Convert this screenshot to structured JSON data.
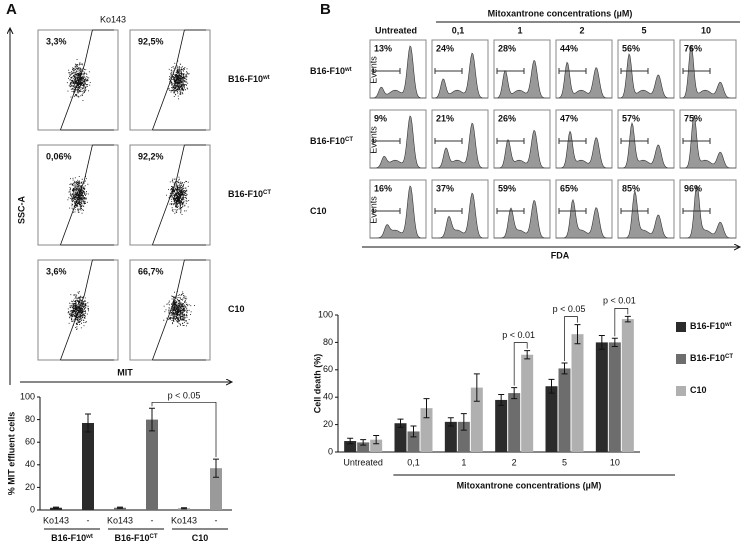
{
  "panel_a": {
    "label": "A",
    "inhibitor": "Ko143",
    "y_axis": "SSC-A",
    "x_axis": "MIT",
    "rows": [
      {
        "name": {
          "base": "B16-F10",
          "sup": "wt"
        },
        "percents": [
          "3,3%",
          "92,5%"
        ]
      },
      {
        "name": {
          "base": "B16-F10",
          "sup": "CT"
        },
        "percents": [
          "0,06%",
          "92,2%"
        ]
      },
      {
        "name": {
          "base": "C10",
          "sup": ""
        },
        "percents": [
          "3,6%",
          "66,7%"
        ]
      }
    ]
  },
  "panel_b": {
    "label": "B",
    "header": "Mitoxantrone concentrations (µM)",
    "columns": [
      "Untreated",
      "0,1",
      "1",
      "2",
      "5",
      "10"
    ],
    "x_axis": "FDA",
    "y_axis": "Events",
    "rows": [
      {
        "name": {
          "base": "B16-F10",
          "sup": "wt"
        },
        "percents": [
          "13%",
          "24%",
          "28%",
          "44%",
          "56%",
          "76%"
        ]
      },
      {
        "name": {
          "base": "B16-F10",
          "sup": "CT"
        },
        "percents": [
          "9%",
          "21%",
          "26%",
          "47%",
          "57%",
          "75%"
        ]
      },
      {
        "name": {
          "base": "C10",
          "sup": ""
        },
        "percents": [
          "16%",
          "37%",
          "59%",
          "65%",
          "85%",
          "96%"
        ]
      }
    ]
  },
  "chart_data": [
    {
      "type": "bar",
      "y_label": "% MIT effluent cells",
      "categories": [
        "Ko143",
        "-",
        "Ko143",
        "-",
        "Ko143",
        "-"
      ],
      "groups": [
        {
          "base": "B16-F10",
          "sup": "wt"
        },
        {
          "base": "B16-F10",
          "sup": "CT"
        },
        {
          "base": "C10",
          "sup": ""
        }
      ],
      "values": [
        2,
        77,
        2,
        80,
        1.5,
        37
      ],
      "errors": [
        0.5,
        8,
        0.5,
        10,
        0.5,
        8
      ],
      "colors": [
        "#2b2b2b",
        "#2b2b2b",
        "#6d6d6d",
        "#6d6d6d",
        "#9a9a9a",
        "#9a9a9a"
      ],
      "ylim": [
        0,
        100
      ],
      "yticks": [
        0,
        20,
        40,
        60,
        80,
        100
      ],
      "annotation": "p < 0.05"
    },
    {
      "type": "grouped_bar",
      "y_label": "Cell death (%)",
      "x_label": "Mitoxantrone concentrations (µM)",
      "categories": [
        "Untreated",
        "0,1",
        "1",
        "2",
        "5",
        "10"
      ],
      "series": [
        {
          "name": "B16-F10",
          "sup": "wt",
          "color": "#2b2b2b",
          "values": [
            8,
            21,
            22,
            38,
            48,
            80
          ],
          "errors": [
            2,
            3,
            3,
            4,
            5,
            5
          ]
        },
        {
          "name": "B16-F10",
          "sup": "CT",
          "color": "#6d6d6d",
          "values": [
            7,
            15,
            22,
            43,
            61,
            80
          ],
          "errors": [
            2,
            4,
            6,
            4,
            4,
            3
          ]
        },
        {
          "name": "C10",
          "sup": "",
          "color": "#b0b0b0",
          "values": [
            9,
            32,
            47,
            71,
            86,
            97
          ],
          "errors": [
            3,
            7,
            10,
            3,
            7,
            2
          ]
        }
      ],
      "ylim": [
        0,
        100
      ],
      "yticks": [
        0,
        20,
        40,
        60,
        80,
        100
      ],
      "annotations": [
        {
          "text": "p < 0.01",
          "category": "2"
        },
        {
          "text": "p < 0.05",
          "category": "5"
        },
        {
          "text": "p < 0.01",
          "category": "10"
        }
      ]
    }
  ]
}
